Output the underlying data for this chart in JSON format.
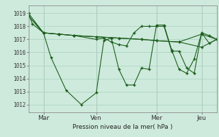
{
  "background_color": "#ceeadc",
  "grid_color": "#aed4c4",
  "line_color": "#1a5c1a",
  "marker": "+",
  "xlabel_text": "Pression niveau de la mer( hPa )",
  "xtick_labels": [
    "Mar",
    "Ven",
    "Mer",
    "Jeu"
  ],
  "xtick_positions": [
    0.083,
    0.375,
    0.708,
    0.958
  ],
  "ytick_labels": [
    1012,
    1013,
    1014,
    1015,
    1016,
    1017,
    1018,
    1019
  ],
  "ylim": [
    1011.4,
    1019.6
  ],
  "xlim_days": [
    0.0,
    1.042
  ],
  "vline_positions": [
    0.083,
    0.375,
    0.708,
    0.958
  ],
  "series1_x": [
    0.0,
    0.021,
    0.083,
    0.167,
    0.25,
    0.375,
    0.417,
    0.458,
    0.5,
    0.542,
    0.583,
    0.625,
    0.667,
    0.708,
    0.75,
    0.792,
    0.833,
    0.875,
    0.917,
    0.958,
    1.0,
    1.042
  ],
  "series1_y": [
    1019.0,
    1018.2,
    1017.5,
    1017.4,
    1017.3,
    1017.0,
    1017.1,
    1016.8,
    1016.6,
    1016.5,
    1017.5,
    1018.0,
    1018.0,
    1018.0,
    1018.0,
    1016.1,
    1016.1,
    1014.8,
    1014.4,
    1017.5,
    1017.3,
    1017.0
  ],
  "series2_x": [
    0.0,
    0.083,
    0.167,
    0.25,
    0.375,
    0.5,
    0.625,
    0.708,
    0.833,
    0.958,
    1.042
  ],
  "series2_y": [
    1019.0,
    1017.5,
    1017.4,
    1017.3,
    1017.2,
    1017.1,
    1017.0,
    1016.9,
    1016.8,
    1016.4,
    1017.0
  ],
  "series3_x": [
    0.0,
    0.083,
    0.125,
    0.208,
    0.292,
    0.375,
    0.417,
    0.458,
    0.5,
    0.542,
    0.583,
    0.625,
    0.667,
    0.708,
    0.75,
    0.792,
    0.833,
    0.875,
    0.917,
    0.958,
    1.0,
    1.042
  ],
  "series3_y": [
    1018.8,
    1017.5,
    1015.6,
    1013.1,
    1012.0,
    1012.9,
    1016.9,
    1017.1,
    1014.7,
    1013.5,
    1013.5,
    1014.8,
    1014.7,
    1018.1,
    1018.1,
    1016.2,
    1014.7,
    1014.4,
    1015.5,
    1017.5,
    1016.7,
    1017.0
  ],
  "series4_x": [
    0.0,
    0.083,
    0.167,
    0.25,
    0.375,
    0.5,
    0.625,
    0.708,
    0.833,
    0.958,
    1.042
  ],
  "series4_y": [
    1018.8,
    1017.5,
    1017.4,
    1017.3,
    1017.2,
    1017.1,
    1017.0,
    1016.9,
    1016.8,
    1017.4,
    1017.0
  ]
}
